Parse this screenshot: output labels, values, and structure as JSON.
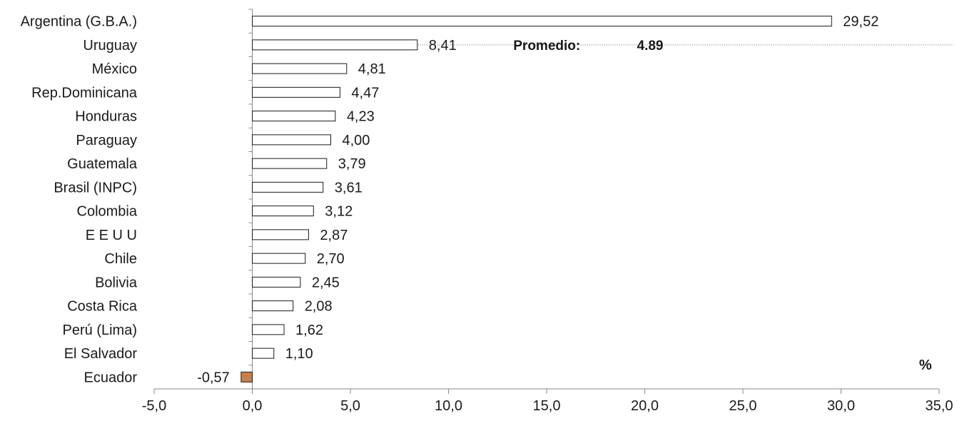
{
  "chart_data": {
    "type": "bar",
    "orientation": "horizontal",
    "categories": [
      "Argentina (G.B.A.)",
      "Uruguay",
      "México",
      "Rep.Dominicana",
      "Honduras",
      "Paraguay",
      "Guatemala",
      "Brasil (INPC)",
      "Colombia",
      "E E U U",
      "Chile",
      "Bolivia",
      "Costa Rica",
      "Perú (Lima)",
      "El Salvador",
      "Ecuador"
    ],
    "values": [
      29.52,
      8.41,
      4.81,
      4.47,
      4.23,
      4.0,
      3.79,
      3.61,
      3.12,
      2.87,
      2.7,
      2.45,
      2.08,
      1.62,
      1.1,
      -0.57
    ],
    "value_labels": [
      "29,52",
      "8,41",
      "4,81",
      "4,47",
      "4,23",
      "4,00",
      "3,79",
      "3,61",
      "3,12",
      "2,87",
      "2,70",
      "2,45",
      "2,08",
      "1,62",
      "1,10",
      "-0,57"
    ],
    "highlight": {
      "category": "Ecuador",
      "color": "#c8804a"
    },
    "bar_fill": "#ffffff",
    "bar_stroke": "#1a1a1a",
    "xlim": [
      -5,
      35
    ],
    "xticks": [
      -5,
      0,
      5,
      10,
      15,
      20,
      25,
      30,
      35
    ],
    "xtick_labels": [
      "-5,0",
      "0,0",
      "5,0",
      "10,0",
      "15,0",
      "20,0",
      "25,0",
      "30,0",
      "35,0"
    ],
    "unit_label": "%",
    "average": {
      "label": "Promedio:",
      "value_text": "4.89"
    },
    "grid": false,
    "legend": "none"
  }
}
